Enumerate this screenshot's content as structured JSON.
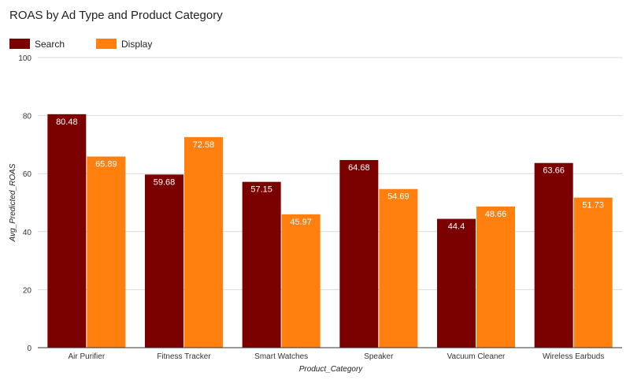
{
  "chart_data": {
    "type": "bar",
    "title": "ROAS by Ad Type and Product Category",
    "xlabel": "Product_Category",
    "ylabel": "Avg_Predicted_ROAS",
    "ylim": [
      0,
      100
    ],
    "yticks": [
      0,
      20,
      40,
      60,
      80,
      100
    ],
    "legend_position": "top-left",
    "grid": true,
    "categories": [
      "Air Purifier",
      "Fitness Tracker",
      "Smart Watches",
      "Speaker",
      "Vacuum Cleaner",
      "Wireless Earbuds"
    ],
    "series": [
      {
        "name": "Search",
        "color": "#7b0000",
        "values": [
          80.48,
          59.68,
          57.15,
          64.68,
          44.4,
          63.66
        ]
      },
      {
        "name": "Display",
        "color": "#ff800e",
        "values": [
          65.89,
          72.58,
          45.97,
          54.69,
          48.66,
          51.73
        ]
      }
    ]
  }
}
